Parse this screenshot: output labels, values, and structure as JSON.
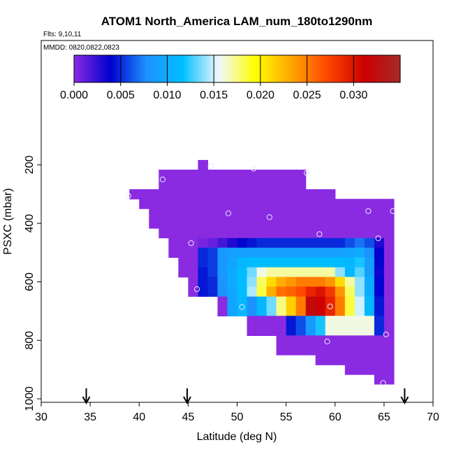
{
  "chart_data": {
    "type": "heatmap",
    "title": "ATOM1 North_America LAM_num_180to1290nm",
    "flights_note": "Flts: 9,10,11",
    "mmdd_note": "MMDD: 0820,0822,0823",
    "xlabel": "Latitude (deg N)",
    "ylabel": "PSXC (mbar)",
    "xlim": [
      30,
      70
    ],
    "ylim": [
      1000,
      0
    ],
    "x_ticks": [
      "30",
      "35",
      "40",
      "45",
      "50",
      "55",
      "60",
      "65",
      "70"
    ],
    "y_ticks": [
      "200",
      "400",
      "600",
      "800",
      "1000"
    ],
    "colorbar": {
      "range": [
        0,
        0.035
      ],
      "tick_labels": [
        "0.000",
        "0.005",
        "0.010",
        "0.015",
        "0.020",
        "0.025",
        "0.030"
      ],
      "tick_values": [
        0,
        0.005,
        0.01,
        0.015,
        0.02,
        0.025,
        0.03
      ],
      "colors": [
        "#8a2be2",
        "#0000cd",
        "#1e90ff",
        "#00bfff",
        "#f0f8ff",
        "#ffff00",
        "#ffa500",
        "#ff4500",
        "#cc0000",
        "#a52a2a"
      ]
    },
    "cell_size": {
      "dlat": 1,
      "dp": 33.3
    },
    "row_spans": [
      {
        "p": 200,
        "lat": [
          46,
          47
        ]
      },
      {
        "p": 233,
        "lat": [
          42,
          57
        ]
      },
      {
        "p": 267,
        "lat": [
          42,
          57
        ]
      },
      {
        "p": 300,
        "lat": [
          39,
          60
        ]
      },
      {
        "p": 333,
        "lat": [
          40,
          66
        ]
      },
      {
        "p": 367,
        "lat": [
          41,
          66
        ]
      },
      {
        "p": 400,
        "lat": [
          41,
          66
        ]
      },
      {
        "p": 433,
        "lat": [
          42,
          66
        ]
      },
      {
        "p": 467,
        "lat": [
          43,
          66
        ]
      },
      {
        "p": 500,
        "lat": [
          43,
          66
        ]
      },
      {
        "p": 533,
        "lat": [
          44,
          66
        ]
      },
      {
        "p": 567,
        "lat": [
          44,
          66
        ]
      },
      {
        "p": 600,
        "lat": [
          45,
          66
        ]
      },
      {
        "p": 633,
        "lat": [
          45,
          66
        ]
      },
      {
        "p": 667,
        "lat": [
          48,
          66
        ]
      },
      {
        "p": 700,
        "lat": [
          48,
          66
        ]
      },
      {
        "p": 733,
        "lat": [
          51,
          66
        ]
      },
      {
        "p": 767,
        "lat": [
          51,
          66
        ]
      },
      {
        "p": 800,
        "lat": [
          54,
          66
        ]
      },
      {
        "p": 833,
        "lat": [
          54,
          66
        ]
      },
      {
        "p": 867,
        "lat": [
          58,
          66
        ]
      },
      {
        "p": 900,
        "lat": [
          61,
          66
        ]
      },
      {
        "p": 933,
        "lat": [
          64,
          66
        ]
      }
    ],
    "rows": [
      {
        "p": 467,
        "lat0": 46,
        "values": [
          0.0005,
          0.001,
          0.002,
          0.003,
          0.004,
          0.0045,
          0.005,
          0.005,
          0.005,
          0.005,
          0.005,
          0.005,
          0.005,
          0.005,
          0.005,
          0.006,
          0.007,
          0.006,
          0.003
        ]
      },
      {
        "p": 500,
        "lat0": 46,
        "values": [
          0.005,
          0.0055,
          0.0085,
          0.009,
          0.009,
          0.009,
          0.009,
          0.009,
          0.009,
          0.009,
          0.009,
          0.009,
          0.009,
          0.009,
          0.009,
          0.0095,
          0.01,
          0.008,
          0.004
        ]
      },
      {
        "p": 533,
        "lat0": 46,
        "values": [
          0.005,
          0.0055,
          0.0085,
          0.0095,
          0.011,
          0.0115,
          0.0115,
          0.0115,
          0.0115,
          0.0115,
          0.0115,
          0.0115,
          0.0115,
          0.0115,
          0.0115,
          0.011,
          0.012,
          0.009,
          0.004
        ]
      },
      {
        "p": 567,
        "lat0": 46,
        "values": [
          0.0045,
          0.0055,
          0.0085,
          0.01,
          0.0115,
          0.0135,
          0.016,
          0.017,
          0.017,
          0.017,
          0.017,
          0.017,
          0.017,
          0.017,
          0.014,
          0.011,
          0.013,
          0.009,
          0.0035
        ]
      },
      {
        "p": 600,
        "lat0": 46,
        "values": [
          0.0045,
          0.005,
          0.008,
          0.01,
          0.0115,
          0.014,
          0.018,
          0.021,
          0.023,
          0.024,
          0.025,
          0.025,
          0.025,
          0.024,
          0.021,
          0.017,
          0.014,
          0.01,
          0.004
        ]
      },
      {
        "p": 633,
        "lat0": 46,
        "values": [
          0.0045,
          0.005,
          0.008,
          0.0095,
          0.0115,
          0.0145,
          0.0185,
          0.023,
          0.0255,
          0.026,
          0.027,
          0.029,
          0.03,
          0.028,
          0.024,
          0.018,
          0.014,
          0.01,
          0.004
        ]
      },
      {
        "p": 667,
        "lat0": 49,
        "values": [
          0.0095,
          0.011,
          0.008,
          0.011,
          0.0135,
          0.0175,
          0.0215,
          0.025,
          0.032,
          0.031,
          0.029,
          0.025,
          0.0185,
          0.015,
          0.011,
          0.0045
        ]
      },
      {
        "p": 700,
        "lat0": 49,
        "values": [
          0.0095,
          0.011,
          0.008,
          0.011,
          0.0135,
          0.0175,
          0.0215,
          0.025,
          0.032,
          0.031,
          0.029,
          0.025,
          0.0185,
          0.015,
          0.011,
          0.0045
        ]
      },
      {
        "p": 733,
        "lat0": 55,
        "values": [
          0.0045,
          0.006,
          0.0085,
          0.012,
          0.016,
          0.016,
          0.016,
          0.016,
          0.016,
          0.005
        ]
      },
      {
        "p": 767,
        "lat0": 55,
        "values": [
          0.0045,
          0.006,
          0.0085,
          0.012,
          0.016,
          0.016,
          0.016,
          0.016,
          0.016,
          0.005
        ]
      }
    ],
    "flight_points": [
      {
        "lat": 47.3,
        "p": 205
      },
      {
        "lat": 51.7,
        "p": 213
      },
      {
        "lat": 57.1,
        "p": 228
      },
      {
        "lat": 42.4,
        "p": 250
      },
      {
        "lat": 38.9,
        "p": 306
      },
      {
        "lat": 63.4,
        "p": 358
      },
      {
        "lat": 65.9,
        "p": 358
      },
      {
        "lat": 49.1,
        "p": 366
      },
      {
        "lat": 53.3,
        "p": 379
      },
      {
        "lat": 58.4,
        "p": 437
      },
      {
        "lat": 64.4,
        "p": 451
      },
      {
        "lat": 45.3,
        "p": 468
      },
      {
        "lat": 45.9,
        "p": 625
      },
      {
        "lat": 50.5,
        "p": 686
      },
      {
        "lat": 59.5,
        "p": 684
      },
      {
        "lat": 65.2,
        "p": 780
      },
      {
        "lat": 59.2,
        "p": 804
      },
      {
        "lat": 64.9,
        "p": 946
      }
    ],
    "arrow_lats": [
      34.6,
      44.9,
      67.1
    ]
  }
}
